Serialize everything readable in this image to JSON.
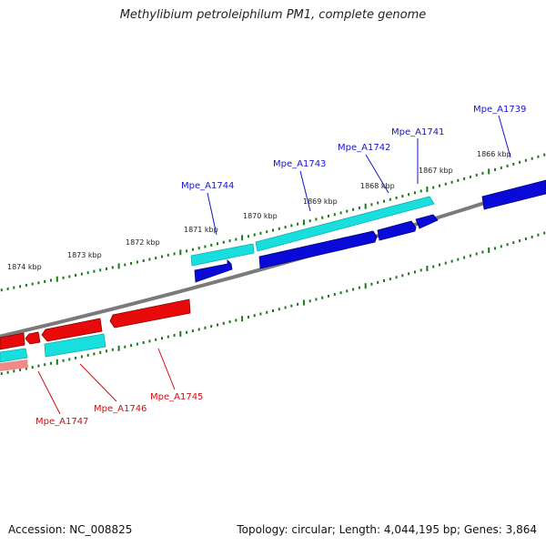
{
  "title": "Methylibium petroleiphilum PM1, complete genome",
  "footer": {
    "accession": "Accession: NC_008825",
    "summary": "Topology: circular; Length: 4,044,195 bp; Genes: 3,864"
  },
  "colors": {
    "backbone": "#7a7a7a",
    "tick": "#1a7a1a",
    "forward_cds": "#0a0ad8",
    "forward_gene": "#19dede",
    "reverse_cds": "#e80a0a",
    "reverse_gene": "#19dede",
    "forward_label": "#1616c8",
    "reverse_label": "#cc1010"
  },
  "scale_labels": [
    "1866 kbp",
    "1867 kbp",
    "1868 kbp",
    "1869 kbp",
    "1870 kbp",
    "1871 kbp",
    "1872 kbp",
    "1873 kbp",
    "1874 kbp"
  ],
  "forward_genes": [
    "Mpe_A1739",
    "Mpe_A1741",
    "Mpe_A1742",
    "Mpe_A1743",
    "Mpe_A1744"
  ],
  "reverse_genes": [
    "Mpe_A1745",
    "Mpe_A1746",
    "Mpe_A1747"
  ]
}
